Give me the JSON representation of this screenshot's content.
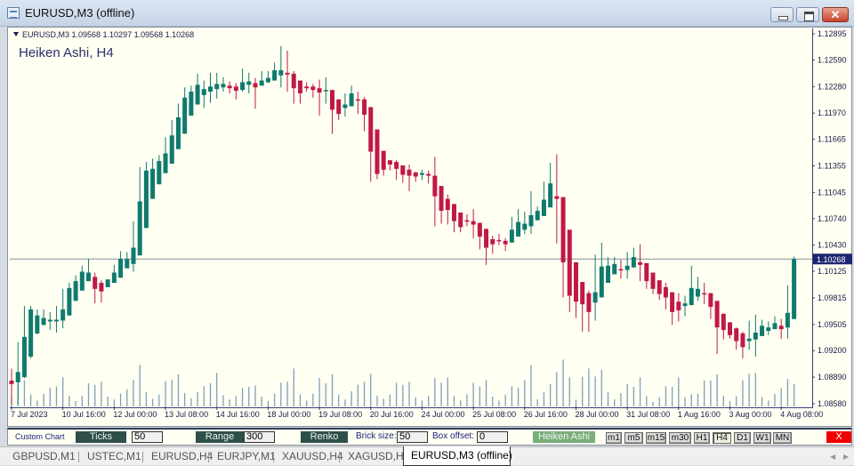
{
  "window": {
    "title": "EURUSD,M3 (offline)",
    "buttons": [
      "minimize",
      "maximize",
      "close"
    ],
    "close_glyph": "✕"
  },
  "chart": {
    "ohlc_header": "EURUSD,M3  1.09568 1.10297 1.09568 1.10268",
    "indicator_label": "Heiken Ashi, H4",
    "current_price": "1.10268",
    "colors": {
      "bull": "#0f7a6e",
      "bear": "#c01848",
      "volume": "#7f9fc2",
      "background": "#fffff2",
      "price_line": "#8a8f99",
      "axis": "#3a3f7a",
      "price_tag": "#1d2670"
    }
  },
  "chart_data": {
    "type": "candlestick",
    "style": "Heiken Ashi",
    "ylim": [
      1.0858,
      1.12895
    ],
    "y_ticks": [
      "1.12895",
      "1.12590",
      "1.12280",
      "1.11970",
      "1.11665",
      "1.11355",
      "1.11045",
      "1.10740",
      "1.10430",
      "1.10125",
      "1.09815",
      "1.09505",
      "1.09200",
      "1.08890",
      "1.08580"
    ],
    "x_labels": [
      "7 Jul 2023",
      "10 Jul 16:00",
      "12 Jul 00:00",
      "13 Jul 08:00",
      "14 Jul 16:00",
      "18 Jul 00:00",
      "19 Jul 08:00",
      "20 Jul 16:00",
      "24 Jul 00:00",
      "25 Jul 08:00",
      "26 Jul 16:00",
      "28 Jul 00:00",
      "31 Jul 08:00",
      "1 Aug 16:00",
      "3 Aug 00:00",
      "4 Aug 08:00"
    ],
    "current_price": 1.10268,
    "candles_ohlc": [
      [
        1.0885,
        1.0899,
        1.0857,
        1.0881
      ],
      [
        1.0883,
        1.093,
        1.0857,
        1.0895
      ],
      [
        1.0889,
        1.0972,
        1.0888,
        1.0936
      ],
      [
        1.0913,
        1.0972,
        1.0911,
        1.0968
      ],
      [
        1.094,
        1.0968,
        1.0939,
        1.0961
      ],
      [
        1.095,
        1.0968,
        1.0949,
        1.0958
      ],
      [
        1.0954,
        1.0965,
        1.0944,
        1.0956
      ],
      [
        1.0954,
        1.0972,
        1.0941,
        1.0956
      ],
      [
        1.0955,
        1.0992,
        1.0946,
        1.0968
      ],
      [
        1.0961,
        1.0999,
        1.0961,
        1.0993
      ],
      [
        1.0978,
        1.1008,
        1.0978,
        1.1001
      ],
      [
        1.099,
        1.1019,
        1.099,
        1.1012
      ],
      [
        1.1001,
        1.1027,
        1.1001,
        1.1011
      ],
      [
        1.1006,
        1.1011,
        1.0975,
        1.0992
      ],
      [
        1.0999,
        1.1002,
        1.0976,
        1.0989
      ],
      [
        1.0994,
        1.1003,
        1.0994,
        1.1003
      ],
      [
        1.0999,
        1.102,
        1.0999,
        1.1011
      ],
      [
        1.1005,
        1.1036,
        1.1005,
        1.1027
      ],
      [
        1.1016,
        1.1035,
        1.1016,
        1.1027
      ],
      [
        1.1021,
        1.1071,
        1.1012,
        1.104
      ],
      [
        1.1031,
        1.1134,
        1.1031,
        1.1094
      ],
      [
        1.1063,
        1.114,
        1.1063,
        1.113
      ],
      [
        1.1097,
        1.1144,
        1.1097,
        1.1132
      ],
      [
        1.1114,
        1.1148,
        1.1114,
        1.1141
      ],
      [
        1.1127,
        1.1169,
        1.1127,
        1.115
      ],
      [
        1.1138,
        1.1189,
        1.1138,
        1.1171
      ],
      [
        1.1155,
        1.1208,
        1.1155,
        1.1192
      ],
      [
        1.1173,
        1.1227,
        1.1173,
        1.1215
      ],
      [
        1.1194,
        1.1229,
        1.1194,
        1.1222
      ],
      [
        1.1207,
        1.1243,
        1.1207,
        1.123
      ],
      [
        1.1218,
        1.1235,
        1.1203,
        1.1225
      ],
      [
        1.1222,
        1.1244,
        1.1209,
        1.1228
      ],
      [
        1.1225,
        1.1244,
        1.1214,
        1.1231
      ],
      [
        1.1227,
        1.1239,
        1.1222,
        1.1231
      ],
      [
        1.1229,
        1.1234,
        1.122,
        1.1226
      ],
      [
        1.1228,
        1.1232,
        1.1213,
        1.1223
      ],
      [
        1.1224,
        1.1249,
        1.1222,
        1.1233
      ],
      [
        1.123,
        1.1244,
        1.122,
        1.1234
      ],
      [
        1.1232,
        1.1238,
        1.1202,
        1.1227
      ],
      [
        1.1229,
        1.1246,
        1.1229,
        1.1235
      ],
      [
        1.1233,
        1.1246,
        1.1232,
        1.1238
      ],
      [
        1.1235,
        1.1256,
        1.1235,
        1.1247
      ],
      [
        1.1241,
        1.1275,
        1.1227,
        1.1247
      ],
      [
        1.1244,
        1.127,
        1.1222,
        1.1242
      ],
      [
        1.1243,
        1.1246,
        1.1208,
        1.1226
      ],
      [
        1.1235,
        1.1235,
        1.1208,
        1.122
      ],
      [
        1.1228,
        1.1233,
        1.1222,
        1.1226
      ],
      [
        1.1228,
        1.1231,
        1.1215,
        1.1224
      ],
      [
        1.1226,
        1.1236,
        1.1194,
        1.1221
      ],
      [
        1.1223,
        1.1239,
        1.1208,
        1.1224
      ],
      [
        1.1224,
        1.1224,
        1.1173,
        1.1201
      ],
      [
        1.1213,
        1.1213,
        1.1189,
        1.1196
      ],
      [
        1.1203,
        1.122,
        1.1193,
        1.1207
      ],
      [
        1.1205,
        1.1229,
        1.1205,
        1.122
      ],
      [
        1.1213,
        1.1222,
        1.1196,
        1.1212
      ],
      [
        1.1213,
        1.1216,
        1.1176,
        1.1195
      ],
      [
        1.1204,
        1.1204,
        1.1117,
        1.1152
      ],
      [
        1.1178,
        1.1178,
        1.112,
        1.1126
      ],
      [
        1.1153,
        1.1153,
        1.1124,
        1.1131
      ],
      [
        1.1142,
        1.1142,
        1.113,
        1.1137
      ],
      [
        1.114,
        1.1142,
        1.1119,
        1.1132
      ],
      [
        1.1136,
        1.1136,
        1.1116,
        1.1125
      ],
      [
        1.1131,
        1.1137,
        1.1106,
        1.1124
      ],
      [
        1.1128,
        1.1128,
        1.1117,
        1.1123
      ],
      [
        1.1125,
        1.1131,
        1.1119,
        1.1127
      ],
      [
        1.1126,
        1.113,
        1.1115,
        1.1124
      ],
      [
        1.1124,
        1.1146,
        1.1065,
        1.11
      ],
      [
        1.1112,
        1.1112,
        1.1068,
        1.1083
      ],
      [
        1.1097,
        1.1102,
        1.1067,
        1.1084
      ],
      [
        1.1091,
        1.1091,
        1.1058,
        1.1071
      ],
      [
        1.1081,
        1.1081,
        1.1058,
        1.1064
      ],
      [
        1.1072,
        1.1079,
        1.1065,
        1.1071
      ],
      [
        1.1071,
        1.1085,
        1.1051,
        1.1067
      ],
      [
        1.1069,
        1.1069,
        1.1038,
        1.1053
      ],
      [
        1.1062,
        1.1062,
        1.102,
        1.104
      ],
      [
        1.105,
        1.1054,
        1.1033,
        1.1044
      ],
      [
        1.1049,
        1.1056,
        1.1043,
        1.1048
      ],
      [
        1.1048,
        1.1051,
        1.1036,
        1.1044
      ],
      [
        1.1046,
        1.1076,
        1.1046,
        1.1061
      ],
      [
        1.1053,
        1.1085,
        1.1053,
        1.107
      ],
      [
        1.1061,
        1.1082,
        1.1056,
        1.1068
      ],
      [
        1.1065,
        1.1106,
        1.1056,
        1.1078
      ],
      [
        1.1072,
        1.1088,
        1.1072,
        1.1083
      ],
      [
        1.1077,
        1.1117,
        1.1077,
        1.1096
      ],
      [
        1.1087,
        1.1139,
        1.1087,
        1.1115
      ],
      [
        1.11,
        1.1149,
        1.1045,
        1.1097
      ],
      [
        1.1099,
        1.1099,
        1.0982,
        1.1023
      ],
      [
        1.1061,
        1.1061,
        1.0965,
        1.0984
      ],
      [
        1.1023,
        1.1023,
        1.0958,
        1.0977
      ],
      [
        1.1,
        1.1,
        1.0942,
        1.0974
      ],
      [
        1.0987,
        1.099,
        1.0942,
        1.0965
      ],
      [
        1.0976,
        1.1032,
        1.0955,
        1.0988
      ],
      [
        1.0982,
        1.1046,
        1.0982,
        1.1018
      ],
      [
        1.0999,
        1.1029,
        1.0999,
        1.1019
      ],
      [
        1.1009,
        1.1029,
        1.1009,
        1.1021
      ],
      [
        1.1015,
        1.1026,
        1.1004,
        1.1014
      ],
      [
        1.1014,
        1.1035,
        1.1004,
        1.1019
      ],
      [
        1.1017,
        1.104,
        1.1017,
        1.1029
      ],
      [
        1.1023,
        1.1044,
        1.1001,
        1.102
      ],
      [
        1.1022,
        1.1022,
        1.0992,
        1.1001
      ],
      [
        1.1011,
        1.1011,
        1.0986,
        1.0992
      ],
      [
        1.1002,
        1.1002,
        1.0979,
        1.0986
      ],
      [
        1.0994,
        1.0999,
        1.0968,
        1.0982
      ],
      [
        1.0988,
        1.0988,
        1.095,
        1.0965
      ],
      [
        1.0977,
        1.0987,
        1.0954,
        1.0967
      ],
      [
        1.0972,
        1.0984,
        1.096,
        1.0975
      ],
      [
        1.0973,
        1.1019,
        1.0973,
        1.0993
      ],
      [
        1.0983,
        1.1006,
        1.0978,
        1.0992
      ],
      [
        1.0987,
        1.0999,
        1.0974,
        1.0986
      ],
      [
        1.0987,
        1.0987,
        1.0957,
        1.0971
      ],
      [
        1.0978,
        1.0978,
        1.0916,
        1.0947
      ],
      [
        1.0963,
        1.0963,
        1.0933,
        1.0944
      ],
      [
        1.0953,
        1.0953,
        1.0934,
        1.0938
      ],
      [
        1.0946,
        1.0947,
        1.0921,
        1.0931
      ],
      [
        1.094,
        1.0942,
        1.0911,
        1.0924
      ],
      [
        1.0931,
        1.0955,
        1.0921,
        1.0934
      ],
      [
        1.0933,
        1.0962,
        1.0913,
        1.0941
      ],
      [
        1.0937,
        1.0956,
        1.0937,
        1.0949
      ],
      [
        1.0943,
        1.0954,
        1.0938,
        1.0947
      ],
      [
        1.0945,
        1.096,
        1.0945,
        1.0952
      ],
      [
        1.0949,
        1.0957,
        1.0934,
        1.0945
      ],
      [
        1.0947,
        1.0996,
        1.0934,
        1.0964
      ],
      [
        1.09568,
        1.10297,
        1.09568,
        1.10268
      ]
    ],
    "volume": [
      30,
      78,
      88,
      40,
      20,
      43,
      63,
      68,
      98,
      36,
      18,
      36,
      78,
      73,
      83,
      33,
      23,
      43,
      58,
      90,
      140,
      48,
      26,
      40,
      85,
      90,
      108,
      45,
      28,
      48,
      68,
      78,
      113,
      38,
      23,
      35,
      61,
      66,
      71,
      33,
      18,
      43,
      80,
      83,
      128,
      40,
      20,
      43,
      96,
      78,
      108,
      40,
      23,
      51,
      73,
      83,
      110,
      36,
      26,
      40,
      80,
      73,
      83,
      31,
      20,
      36,
      96,
      80,
      98,
      36,
      20,
      41,
      80,
      67,
      90,
      33,
      20,
      40,
      68,
      63,
      88,
      140,
      24,
      48,
      76,
      116,
      158,
      98,
      23,
      100,
      128,
      101,
      123,
      48,
      24,
      45,
      75,
      66,
      98,
      35,
      15,
      31,
      68,
      66,
      98,
      31,
      41,
      43,
      88,
      88,
      108,
      36,
      18,
      34,
      88,
      110,
      113,
      32,
      20,
      42,
      61,
      93,
      75
    ]
  },
  "toolbar": {
    "label": "Custom Chart",
    "ticks_button": "Ticks",
    "ticks_value": "50",
    "range_button": "Range",
    "range_value": "300",
    "renko_button": "Renko",
    "brick_label": "Brick size:",
    "brick_value": "50",
    "offset_label": "Box offset:",
    "offset_value": "0",
    "heiken_button": "Heiken Ashi",
    "timeframes": [
      "m1",
      "m5",
      "m15",
      "m30",
      "H1",
      "H4",
      "D1",
      "W1",
      "MN"
    ],
    "active_timeframe": "H4",
    "close_button": "X"
  },
  "tabs": {
    "items": [
      "GBPUSD,M1",
      "USTEC,M1",
      "EURUSD,H4",
      "EURJPY,M1",
      "XAUUSD,H4",
      "XAGUSD,H4"
    ],
    "active": "EURUSD,M3 (offline)",
    "scroll_left": "◀",
    "scroll_right": "▶"
  }
}
